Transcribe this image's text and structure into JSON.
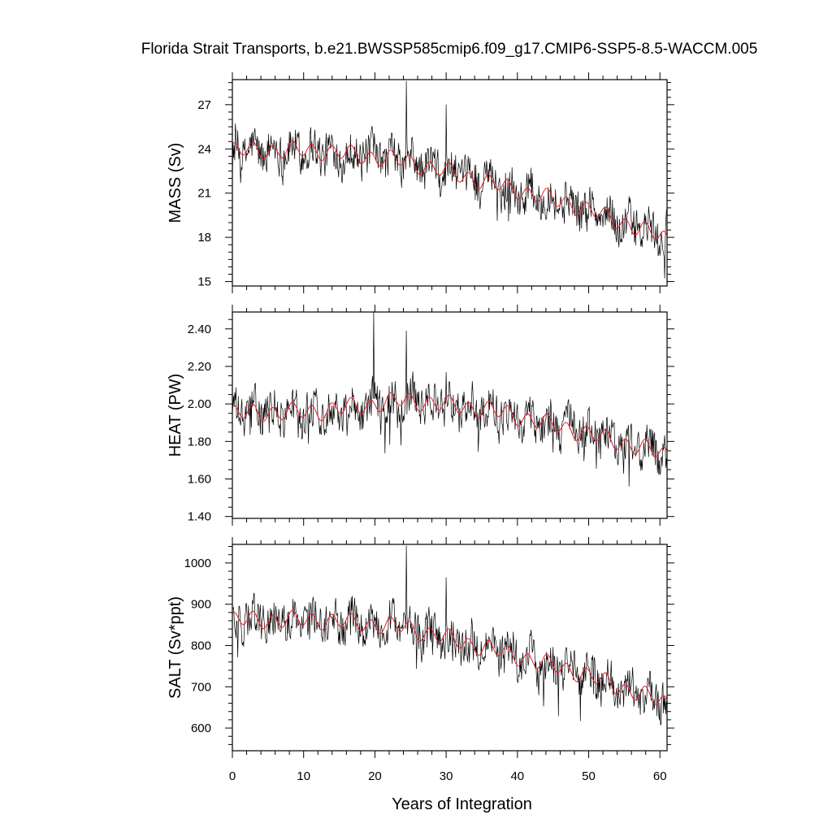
{
  "title": "Florida Strait Transports, b.e21.BWSSP585cmip6.f09_g17.CMIP6-SSP5-8.5-WACCM.005",
  "colors": {
    "raw_series": "#000000",
    "smoothed_series": "#e8202a",
    "frame": "#000000"
  },
  "chart_data": [
    {
      "type": "line",
      "ylabel": "MASS (Sv)",
      "xlabel": "",
      "xlim": [
        0,
        61
      ],
      "ylim": [
        14.7,
        28.7
      ],
      "xticks": [
        0,
        10,
        20,
        30,
        40,
        50,
        60
      ],
      "yticks": [
        15,
        18,
        21,
        24,
        27
      ],
      "ytick_labels": [
        "15",
        "18",
        "21",
        "24",
        "27"
      ],
      "y_minor_step": 0.5,
      "trend_points": [
        [
          0,
          23.9
        ],
        [
          12,
          23.9
        ],
        [
          24,
          23.2
        ],
        [
          36,
          21.7
        ],
        [
          48,
          20.2
        ],
        [
          61,
          17.9
        ]
      ],
      "noise_amplitude": 1.55,
      "spikes": [
        [
          24.4,
          28.6
        ],
        [
          30.0,
          27.0
        ],
        [
          19.4,
          24.8
        ]
      ],
      "seasonal_amplitude": 0.5,
      "series": [
        {
          "name": "",
          "role": "monthly values, noisy grey line",
          "color": "#000000"
        },
        {
          "name": "",
          "role": "smoothed running mean",
          "color": "#e8202a"
        }
      ]
    },
    {
      "type": "line",
      "ylabel": "HEAT (PW)",
      "xlabel": "",
      "xlim": [
        0,
        61
      ],
      "ylim": [
        1.39,
        2.49
      ],
      "xticks": [
        0,
        10,
        20,
        30,
        40,
        50,
        60
      ],
      "yticks": [
        1.4,
        1.6,
        1.8,
        2.0,
        2.2,
        2.4
      ],
      "ytick_labels": [
        "1.40",
        "1.60",
        "1.80",
        "2.00",
        "2.20",
        "2.40"
      ],
      "y_minor_step": 0.05,
      "trend_points": [
        [
          0,
          1.95
        ],
        [
          12,
          1.96
        ],
        [
          24,
          2.02
        ],
        [
          36,
          1.97
        ],
        [
          48,
          1.86
        ],
        [
          61,
          1.73
        ]
      ],
      "noise_amplitude": 0.12,
      "spikes": [
        [
          19.8,
          2.49
        ],
        [
          24.4,
          2.39
        ],
        [
          30.0,
          2.17
        ]
      ],
      "seasonal_amplitude": 0.04,
      "series": [
        {
          "name": "",
          "role": "monthly values, noisy grey line",
          "color": "#000000"
        },
        {
          "name": "",
          "role": "smoothed running mean",
          "color": "#e8202a"
        }
      ]
    },
    {
      "type": "line",
      "ylabel": "SALT (Sv*ppt)",
      "xlabel": "Years of Integration",
      "xlim": [
        0,
        61
      ],
      "ylim": [
        545,
        1045
      ],
      "xticks": [
        0,
        10,
        20,
        30,
        40,
        50,
        60
      ],
      "xtick_labels": [
        "0",
        "10",
        "20",
        "30",
        "40",
        "50",
        "60"
      ],
      "yticks": [
        600,
        700,
        800,
        900,
        1000
      ],
      "ytick_labels": [
        "600",
        "700",
        "800",
        "900",
        "1000"
      ],
      "y_minor_step": 20,
      "trend_points": [
        [
          0,
          862
        ],
        [
          12,
          862
        ],
        [
          24,
          845
        ],
        [
          36,
          792
        ],
        [
          48,
          738
        ],
        [
          61,
          660
        ]
      ],
      "noise_amplitude": 55,
      "spikes": [
        [
          24.4,
          1042
        ],
        [
          30.0,
          965
        ]
      ],
      "seasonal_amplitude": 18,
      "series": [
        {
          "name": "",
          "role": "monthly values, noisy grey line",
          "color": "#000000"
        },
        {
          "name": "",
          "role": "smoothed running mean",
          "color": "#e8202a"
        }
      ]
    }
  ]
}
